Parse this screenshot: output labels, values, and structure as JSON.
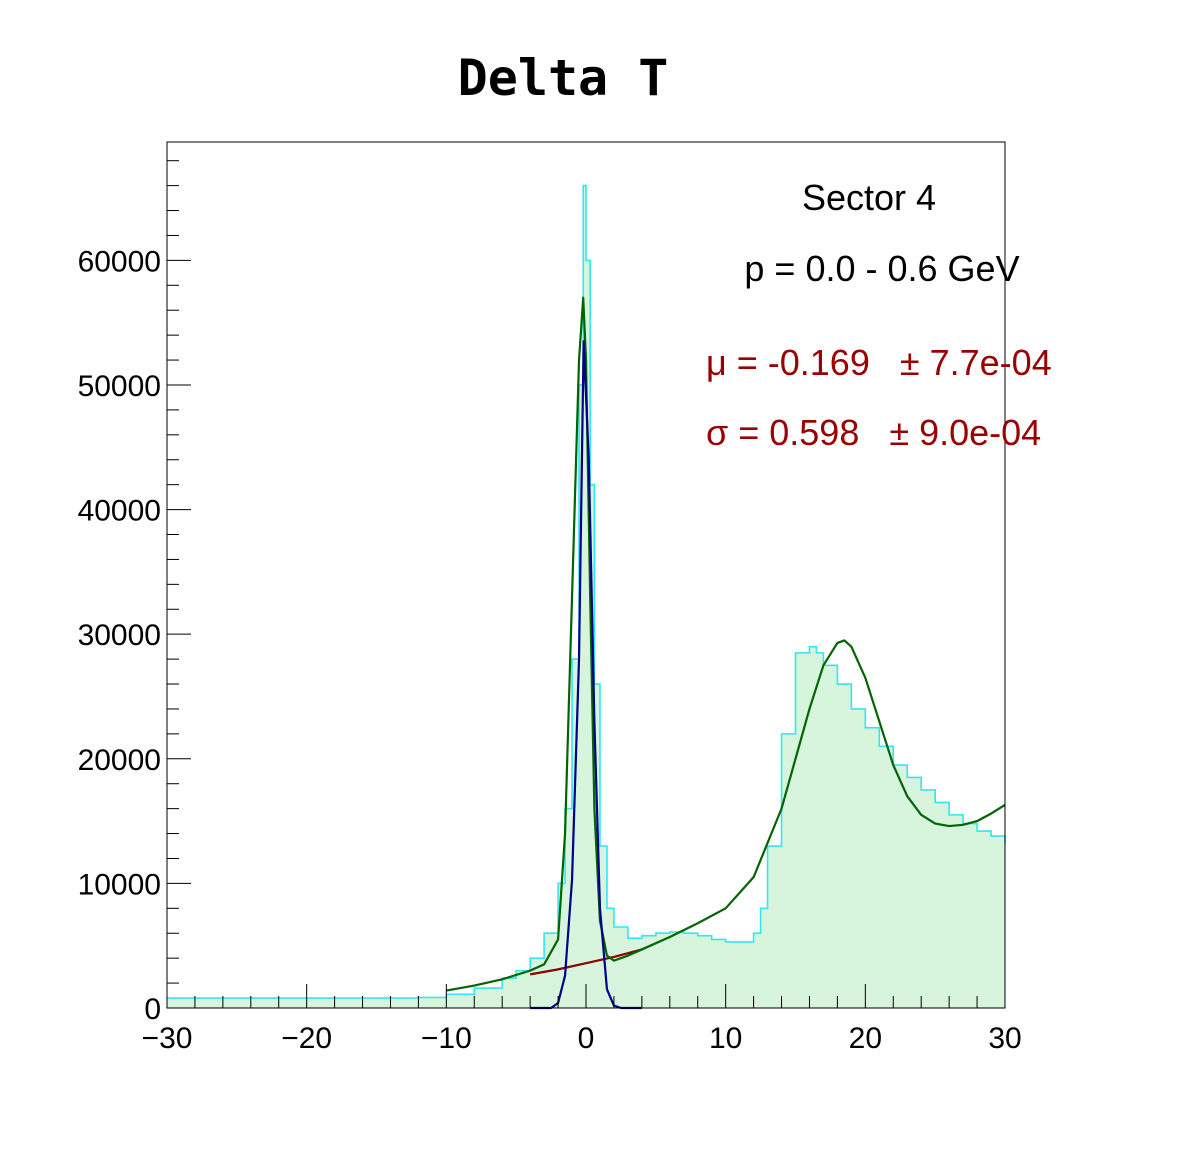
{
  "chart_data": {
    "type": "histogram",
    "title": "Delta T",
    "xlabel": "",
    "ylabel": "",
    "xlim": [
      -30,
      30
    ],
    "ylim": [
      0,
      69500
    ],
    "x_ticks": [
      -30,
      -20,
      -10,
      0,
      10,
      20,
      30
    ],
    "x_tick_labels": [
      "−30",
      "−20",
      "−10",
      "0",
      "10",
      "20",
      "30"
    ],
    "y_ticks": [
      0,
      10000,
      20000,
      30000,
      40000,
      50000,
      60000
    ],
    "y_tick_labels": [
      "0",
      "10000",
      "20000",
      "30000",
      "40000",
      "50000",
      "60000"
    ],
    "grid": false,
    "colors": {
      "histogram_line": "#33e6f0",
      "histogram_fill": "#d6f5dc",
      "total_fit": "#006400",
      "background_fit": "#8b0000",
      "gaussian_fit": "#00008b",
      "annotation_fit": "#9a0000"
    },
    "annotations": {
      "sector": "Sector 4",
      "momentum": "p = 0.0 - 0.6 GeV",
      "mu": "μ = -0.169   ± 7.7e-04",
      "sigma": "σ = 0.598   ± 9.0e-04"
    },
    "series": [
      {
        "kind": "histogram",
        "x": [
          -30,
          -25,
          -20,
          -15,
          -12,
          -10,
          -8,
          -6,
          -5,
          -4,
          -3,
          -2,
          -1.5,
          -1,
          -0.5,
          -0.2,
          0,
          0.3,
          0.6,
          1,
          1.5,
          2,
          3,
          4,
          5,
          6,
          7,
          8,
          9,
          10,
          11,
          12,
          12.5,
          13,
          14,
          15,
          16,
          16.5,
          17,
          18,
          19,
          20,
          21,
          22,
          23,
          24,
          25,
          26,
          27,
          28,
          29,
          30
        ],
        "y": [
          800,
          800,
          800,
          800,
          850,
          1100,
          1600,
          2400,
          3000,
          4000,
          6000,
          10000,
          16000,
          28000,
          50000,
          66000,
          60000,
          42000,
          26000,
          13000,
          8000,
          6500,
          5600,
          5800,
          6000,
          6100,
          6000,
          5800,
          5500,
          5300,
          5300,
          6000,
          8000,
          13000,
          22000,
          28500,
          29000,
          28500,
          27500,
          26000,
          24000,
          22500,
          21000,
          19500,
          18500,
          17500,
          16500,
          15500,
          14800,
          14200,
          13800,
          13200
        ]
      },
      {
        "kind": "fit_total",
        "x": [
          -10,
          -8,
          -6,
          -4,
          -3,
          -2,
          -1.5,
          -1,
          -0.5,
          -0.2,
          0,
          0.3,
          0.6,
          1,
          1.5,
          2,
          3,
          4,
          6,
          8,
          10,
          12,
          14,
          15,
          16,
          17,
          18,
          18.5,
          19,
          20,
          21,
          22,
          23,
          24,
          25,
          26,
          27,
          28,
          29,
          30
        ],
        "y": [
          1400,
          1800,
          2300,
          3000,
          3500,
          5500,
          14000,
          33000,
          52000,
          57000,
          52000,
          33000,
          16000,
          7000,
          4200,
          3800,
          4200,
          4700,
          5700,
          6800,
          8000,
          10500,
          16000,
          20000,
          24000,
          27500,
          29300,
          29500,
          29000,
          26500,
          23000,
          19500,
          17000,
          15500,
          14800,
          14600,
          14700,
          15000,
          15600,
          16300
        ]
      },
      {
        "kind": "fit_background",
        "x": [
          -4,
          -2,
          0,
          2,
          4
        ],
        "y": [
          2700,
          3100,
          3600,
          4100,
          4700
        ]
      },
      {
        "kind": "fit_gaussian",
        "x": [
          -4,
          -2.5,
          -2,
          -1.5,
          -1,
          -0.5,
          -0.169,
          0.2,
          0.6,
          1,
          1.5,
          2,
          2.5,
          4
        ],
        "y": [
          0,
          0,
          400,
          2600,
          10300,
          28000,
          53500,
          44000,
          23000,
          8000,
          1500,
          200,
          0,
          0
        ]
      }
    ]
  }
}
